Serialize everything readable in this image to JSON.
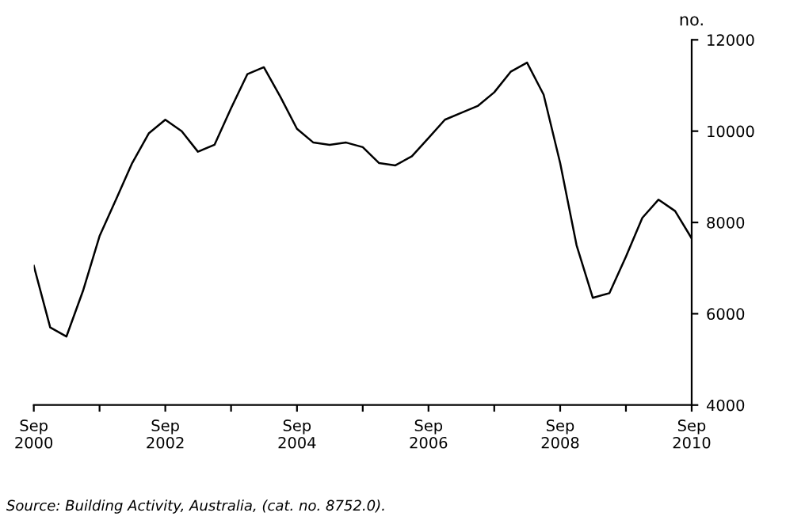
{
  "chart_data": {
    "type": "line",
    "ylabel": "no.",
    "annotations": [
      "Source: Building Activity, Australia, (cat. no. 8752.0)."
    ],
    "x": [
      "2000-09",
      "2000-12",
      "2001-03",
      "2001-06",
      "2001-09",
      "2001-12",
      "2002-03",
      "2002-06",
      "2002-09",
      "2002-12",
      "2003-03",
      "2003-06",
      "2003-09",
      "2003-12",
      "2004-03",
      "2004-06",
      "2004-09",
      "2004-12",
      "2005-03",
      "2005-06",
      "2005-09",
      "2005-12",
      "2006-03",
      "2006-06",
      "2006-09",
      "2006-12",
      "2007-03",
      "2007-06",
      "2007-09",
      "2007-12",
      "2008-03",
      "2008-06",
      "2008-09",
      "2008-12",
      "2009-03",
      "2009-06",
      "2009-09",
      "2009-12",
      "2010-03",
      "2010-06",
      "2010-09"
    ],
    "series": [
      {
        "color": "#000000",
        "values": [
          7050,
          5700,
          5500,
          6500,
          7700,
          8500,
          9300,
          9950,
          10250,
          10000,
          9550,
          9700,
          10500,
          11250,
          11400,
          10750,
          10050,
          9750,
          9700,
          9750,
          9650,
          9300,
          9250,
          9450,
          9850,
          10250,
          10400,
          10550,
          10850,
          11300,
          11500,
          10800,
          9300,
          7500,
          6350,
          6450,
          7250,
          8100,
          8500,
          8250,
          7650
        ]
      }
    ],
    "xlim": [
      "2000-09",
      "2010-09"
    ],
    "xticks": [
      {
        "value": "2000-09",
        "label": "Sep\n2000"
      },
      {
        "value": "2001-09",
        "label": null
      },
      {
        "value": "2002-09",
        "label": "Sep\n2002"
      },
      {
        "value": "2003-09",
        "label": null
      },
      {
        "value": "2004-09",
        "label": "Sep\n2004"
      },
      {
        "value": "2005-09",
        "label": null
      },
      {
        "value": "2006-09",
        "label": "Sep\n2006"
      },
      {
        "value": "2007-09",
        "label": null
      },
      {
        "value": "2008-09",
        "label": "Sep\n2008"
      },
      {
        "value": "2009-09",
        "label": null
      },
      {
        "value": "2010-09",
        "label": "Sep\n2010"
      }
    ],
    "ylim": [
      4000,
      12000
    ],
    "yticks": [
      4000,
      6000,
      8000,
      10000,
      12000
    ],
    "grid": false,
    "marker": "none",
    "line_style": "solid"
  }
}
